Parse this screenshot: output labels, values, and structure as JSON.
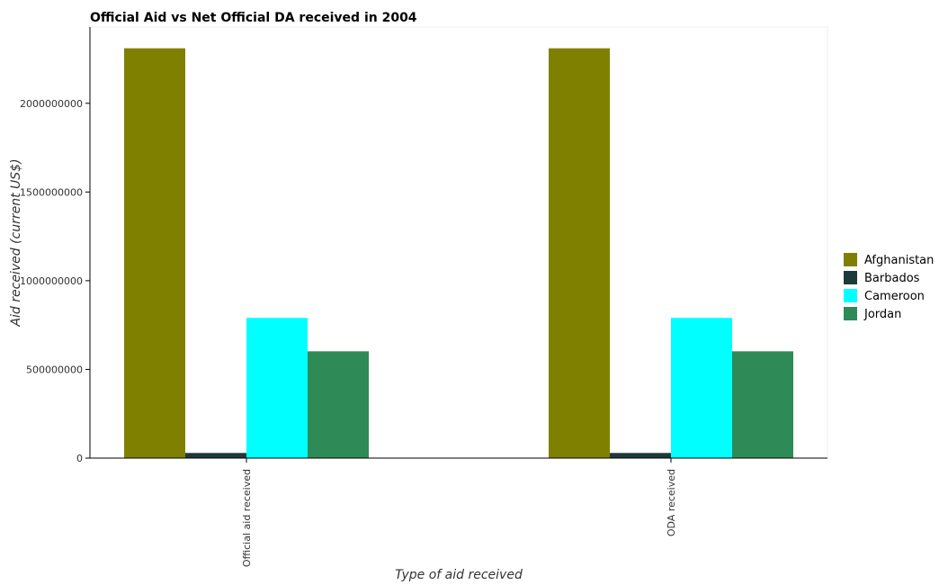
{
  "chart_data": {
    "type": "bar",
    "title": "Official Aid vs Net Official DA received in 2004",
    "xlabel": "Type of aid received",
    "ylabel": "Aid received (current US$)",
    "categories": [
      "Official aid received",
      "ODA received"
    ],
    "series": [
      {
        "name": "Afghanistan",
        "color": "#808000",
        "values": [
          2310000000,
          2310000000
        ]
      },
      {
        "name": "Barbados",
        "color": "#1c3a3a",
        "values": [
          29000000,
          29000000
        ]
      },
      {
        "name": "Cameroon",
        "color": "#00ffff",
        "values": [
          790000000,
          790000000
        ]
      },
      {
        "name": "Jordan",
        "color": "#2e8b57",
        "values": [
          602000000,
          602000000
        ]
      }
    ],
    "ylim": [
      0,
      2430000000
    ],
    "yticks": [
      0,
      500000000,
      1000000000,
      1500000000,
      2000000000
    ],
    "ytick_labels": [
      "0",
      "500000000",
      "1000000000",
      "1500000000",
      "2000000000"
    ],
    "legend_position": "right",
    "grid": false
  }
}
